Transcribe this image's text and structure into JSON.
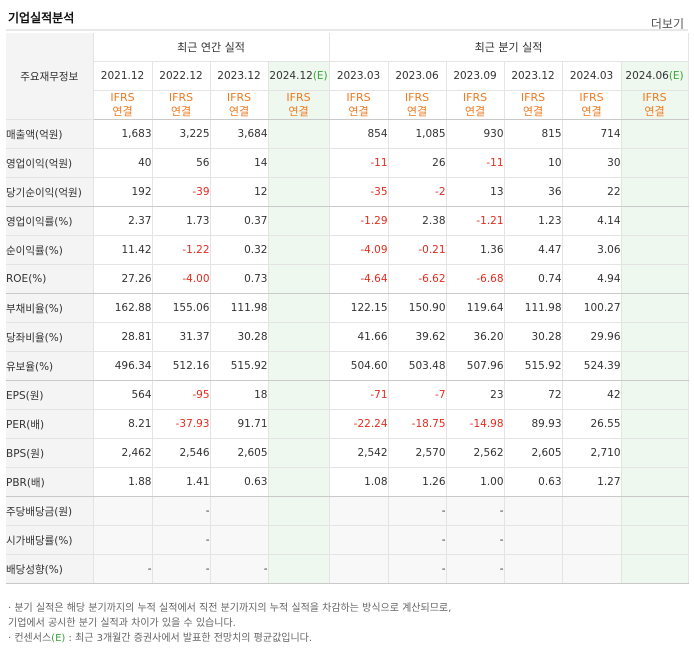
{
  "title": "기업실적분석",
  "more_label": "더보기",
  "label_header": "주요재무정보",
  "annual_header": "최근 연간 실적",
  "quarter_header": "최근 분기 실적",
  "annual_periods": [
    {
      "label": "2021.12",
      "est": false
    },
    {
      "label": "2022.12",
      "est": false
    },
    {
      "label": "2023.12",
      "est": false
    },
    {
      "label": "2024.12",
      "est": true
    }
  ],
  "quarter_periods": [
    {
      "label": "2023.03",
      "est": false
    },
    {
      "label": "2023.06",
      "est": false
    },
    {
      "label": "2023.09",
      "est": false
    },
    {
      "label": "2023.12",
      "est": false
    },
    {
      "label": "2024.03",
      "est": false
    },
    {
      "label": "2024.06",
      "est": true
    }
  ],
  "est_mark": "(E)",
  "ifrs_line1": "IFRS",
  "ifrs_line2": "연결",
  "rows": [
    {
      "label": "매출액(억원)",
      "values": [
        "1,683",
        "3,225",
        "3,684",
        "",
        "854",
        "1,085",
        "930",
        "815",
        "714",
        ""
      ],
      "group_end": false
    },
    {
      "label": "영업이익(억원)",
      "values": [
        "40",
        "56",
        "14",
        "",
        "-11",
        "26",
        "-11",
        "10",
        "30",
        ""
      ],
      "group_end": false
    },
    {
      "label": "당기순이익(억원)",
      "values": [
        "192",
        "-39",
        "12",
        "",
        "-35",
        "-2",
        "13",
        "36",
        "22",
        ""
      ],
      "group_end": true
    },
    {
      "label": "영업이익률(%)",
      "values": [
        "2.37",
        "1.73",
        "0.37",
        "",
        "-1.29",
        "2.38",
        "-1.21",
        "1.23",
        "4.14",
        ""
      ],
      "group_end": false
    },
    {
      "label": "순이익률(%)",
      "values": [
        "11.42",
        "-1.22",
        "0.32",
        "",
        "-4.09",
        "-0.21",
        "1.36",
        "4.47",
        "3.06",
        ""
      ],
      "group_end": false
    },
    {
      "label": "ROE(%)",
      "values": [
        "27.26",
        "-4.00",
        "0.73",
        "",
        "-4.64",
        "-6.62",
        "-6.68",
        "0.74",
        "4.94",
        ""
      ],
      "group_end": true
    },
    {
      "label": "부채비율(%)",
      "values": [
        "162.88",
        "155.06",
        "111.98",
        "",
        "122.15",
        "150.90",
        "119.64",
        "111.98",
        "100.27",
        ""
      ],
      "group_end": false
    },
    {
      "label": "당좌비율(%)",
      "values": [
        "28.81",
        "31.37",
        "30.28",
        "",
        "41.66",
        "39.62",
        "36.20",
        "30.28",
        "29.96",
        ""
      ],
      "group_end": false
    },
    {
      "label": "유보율(%)",
      "values": [
        "496.34",
        "512.16",
        "515.92",
        "",
        "504.60",
        "503.48",
        "507.96",
        "515.92",
        "524.39",
        ""
      ],
      "group_end": true
    },
    {
      "label": "EPS(원)",
      "values": [
        "564",
        "-95",
        "18",
        "",
        "-71",
        "-7",
        "23",
        "72",
        "42",
        ""
      ],
      "group_end": false
    },
    {
      "label": "PER(배)",
      "values": [
        "8.21",
        "-37.93",
        "91.71",
        "",
        "-22.24",
        "-18.75",
        "-14.98",
        "89.93",
        "26.55",
        ""
      ],
      "group_end": false
    },
    {
      "label": "BPS(원)",
      "values": [
        "2,462",
        "2,546",
        "2,605",
        "",
        "2,542",
        "2,570",
        "2,562",
        "2,605",
        "2,710",
        ""
      ],
      "group_end": false
    },
    {
      "label": "PBR(배)",
      "values": [
        "1.88",
        "1.41",
        "0.63",
        "",
        "1.08",
        "1.26",
        "1.00",
        "0.63",
        "1.27",
        ""
      ],
      "group_end": true
    },
    {
      "label": "주당배당금(원)",
      "values": [
        "",
        "-",
        "",
        "",
        "",
        "-",
        "-",
        "",
        "",
        ""
      ],
      "group_end": false,
      "empty": true
    },
    {
      "label": "시가배당률(%)",
      "values": [
        "",
        "-",
        "",
        "",
        "",
        "-",
        "-",
        "",
        "",
        ""
      ],
      "group_end": false,
      "empty": true
    },
    {
      "label": "배당성향(%)",
      "values": [
        "-",
        "-",
        "-",
        "",
        "",
        "-",
        "-",
        "",
        "",
        ""
      ],
      "group_end": true,
      "empty": true
    }
  ],
  "footnotes": {
    "line1": "· 분기 실적은 해당 분기까지의 누적 실적에서 직전 분기까지의 누적 실적을 차감하는 방식으로 계산되므로,",
    "line2": "  기업에서 공시한 분기 실적과 차이가 있을 수 있습니다.",
    "line3_prefix": "· 컨센서스",
    "line3_mark": "(E)",
    "line3_suffix": " : 최근 3개월간 증권사에서 발표한 전망치의 평균값입니다."
  },
  "colors": {
    "negative": "#e52c1f",
    "ifrs": "#ee7a22",
    "estimate_bg": "#eef8ee",
    "estimate_mark": "#3aa33a"
  }
}
